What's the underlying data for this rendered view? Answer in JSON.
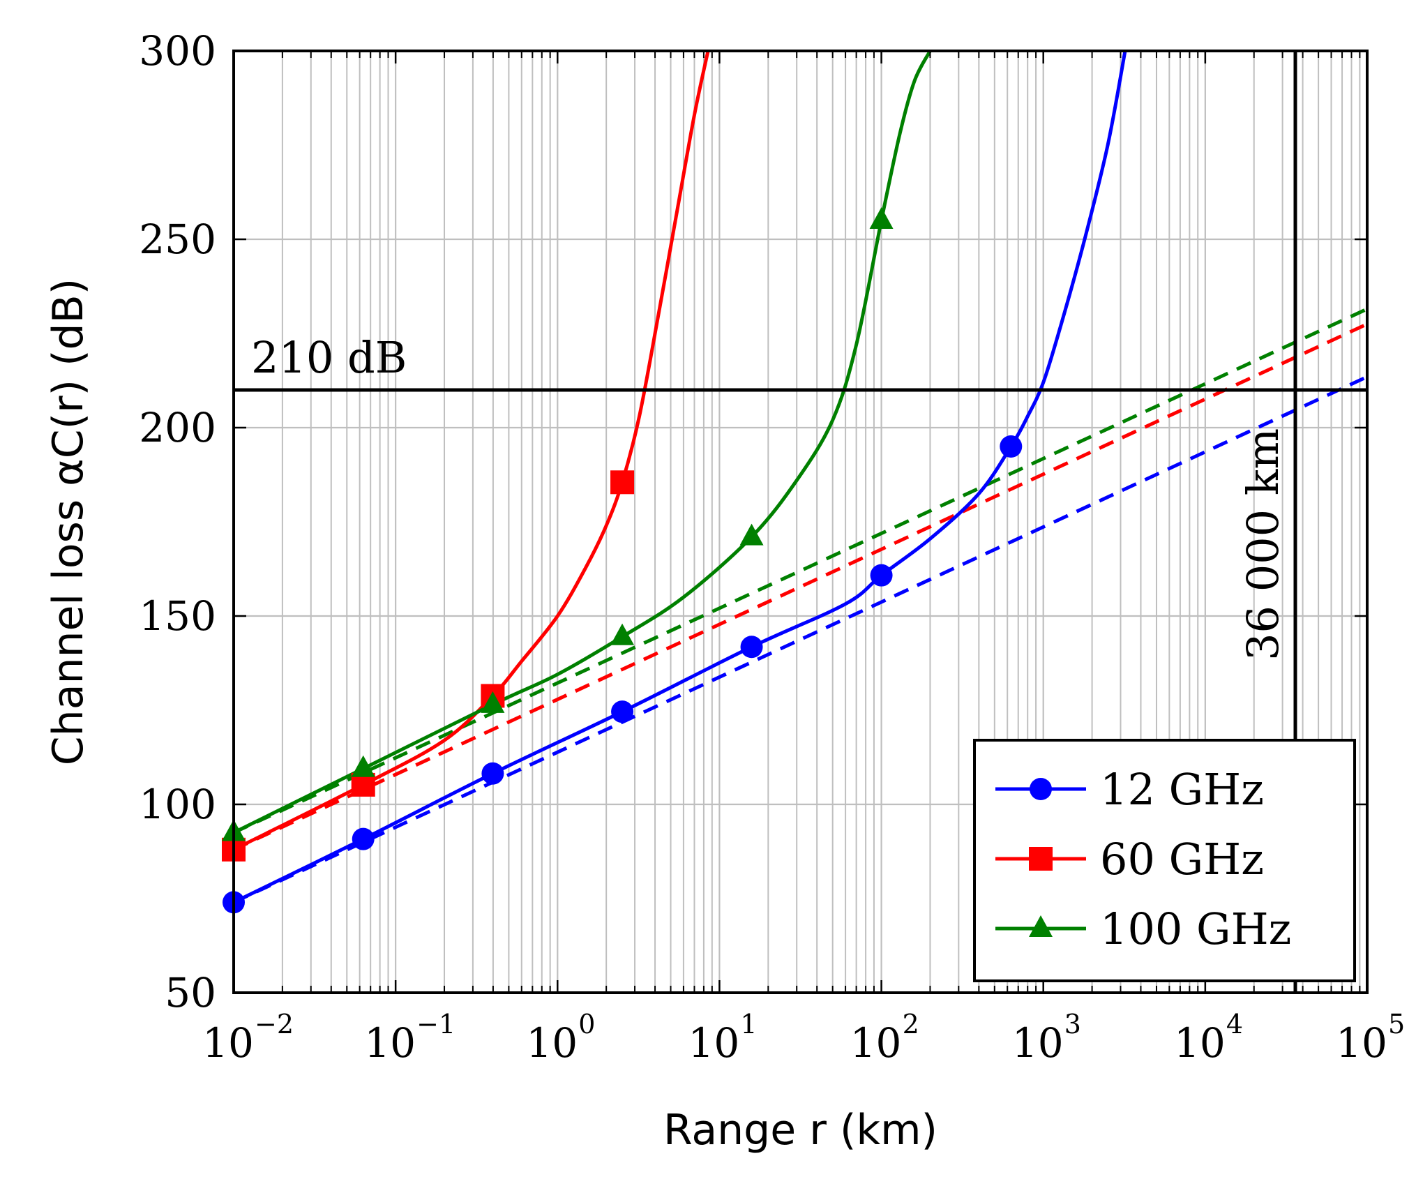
{
  "chart_data": {
    "type": "line",
    "title": "",
    "xlabel": "Range r (km)",
    "ylabel": "Channel loss αC(r) (dB)",
    "xscale": "log",
    "xlim": [
      0.01,
      100000
    ],
    "ylim": [
      50,
      300
    ],
    "x_ticks": [
      "10",
      "10",
      "10",
      "10",
      "10",
      "10",
      "10",
      "10"
    ],
    "x_tick_exponents": [
      "−2",
      "−1",
      "0",
      "1",
      "2",
      "3",
      "4",
      "5"
    ],
    "x_tick_values": [
      0.01,
      0.1,
      1,
      10,
      100,
      1000,
      10000,
      100000
    ],
    "y_ticks": [
      "50",
      "100",
      "150",
      "200",
      "250",
      "300"
    ],
    "y_tick_values": [
      50,
      100,
      150,
      200,
      250,
      300
    ],
    "grid": true,
    "legend_position": "bottom-right",
    "reference_lines": [
      {
        "orientation": "horizontal",
        "value": 210,
        "label": "210 dB"
      },
      {
        "orientation": "vertical",
        "value": 36000,
        "label": "36 000 km"
      }
    ],
    "series": [
      {
        "name": "12 GHz",
        "color": "#0000ff",
        "marker": "circle",
        "markers_x": [
          0.01,
          0.0631,
          0.398,
          2.51,
          15.8,
          100,
          631
        ],
        "markers_y": [
          74,
          90.8,
          108.2,
          124.6,
          141.8,
          160.8,
          195
        ],
        "curve_x": [
          0.01,
          0.0631,
          0.398,
          2.51,
          15.8,
          60,
          100,
          200,
          400,
          631,
          800,
          1000,
          1300,
          1800,
          2500,
          3200
        ],
        "curve_y": [
          74,
          90.8,
          108.2,
          124.6,
          141.8,
          153.2,
          160.8,
          170.5,
          182.5,
          195,
          203,
          212,
          228,
          250,
          275,
          300
        ],
        "free_space_x": [
          0.01,
          100000
        ],
        "free_space_y": [
          74,
          213.5
        ]
      },
      {
        "name": "60 GHz",
        "color": "#ff0000",
        "marker": "square",
        "markers_x": [
          0.01,
          0.0631,
          0.398,
          2.51
        ],
        "markers_y": [
          88,
          105.2,
          128.8,
          185.5
        ],
        "curve_x": [
          0.01,
          0.0631,
          0.2,
          0.398,
          0.6,
          1.0,
          1.5,
          2.0,
          2.51,
          3.2,
          4.2,
          5.5,
          7,
          8.5
        ],
        "curve_y": [
          88,
          105.2,
          117,
          128.8,
          138,
          150,
          163,
          174,
          185.5,
          203,
          230,
          258,
          283,
          300
        ],
        "free_space_x": [
          0.01,
          100000
        ],
        "free_space_y": [
          88,
          227.5
        ]
      },
      {
        "name": "100 GHz",
        "color": "#008000",
        "marker": "triangle",
        "markers_x": [
          0.01,
          0.0631,
          0.398,
          2.51,
          15.8,
          100
        ],
        "markers_y": [
          92.5,
          109.5,
          126.5,
          144.5,
          171,
          255
        ],
        "curve_x": [
          0.01,
          0.0631,
          0.398,
          1.0,
          2.51,
          6,
          15.8,
          30,
          50,
          70,
          100,
          130,
          160,
          200
        ],
        "curve_y": [
          92.5,
          109.5,
          126.5,
          134.5,
          144.5,
          155,
          171,
          186,
          202,
          222,
          255,
          278,
          292,
          300
        ],
        "free_space_x": [
          0.01,
          100000
        ],
        "free_space_y": [
          92.5,
          231.5
        ]
      }
    ]
  }
}
